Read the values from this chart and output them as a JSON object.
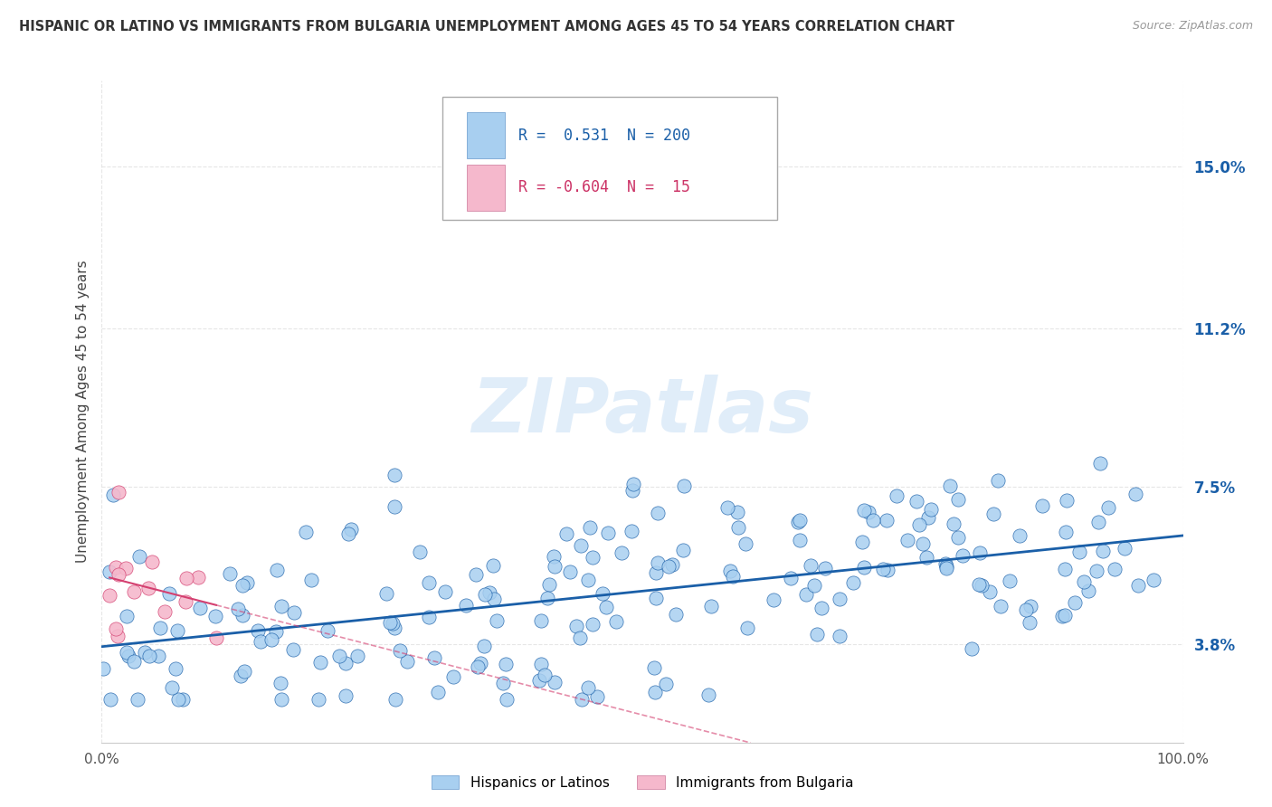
{
  "title": "HISPANIC OR LATINO VS IMMIGRANTS FROM BULGARIA UNEMPLOYMENT AMONG AGES 45 TO 54 YEARS CORRELATION CHART",
  "source": "Source: ZipAtlas.com",
  "ylabel": "Unemployment Among Ages 45 to 54 years",
  "xlim": [
    0,
    100
  ],
  "ylim": [
    1.5,
    17
  ],
  "yticks": [
    3.8,
    7.5,
    11.2,
    15.0
  ],
  "xticks": [
    0,
    100
  ],
  "xticklabels": [
    "0.0%",
    "100.0%"
  ],
  "r_hispanic": 0.531,
  "n_hispanic": 200,
  "r_bulgaria": -0.604,
  "n_bulgaria": 15,
  "color_hispanic": "#a8cff0",
  "color_bulgaria": "#f5b8cc",
  "color_trendline_hispanic": "#1a5fa8",
  "color_trendline_bulgaria": "#d44070",
  "watermark": "ZIPatlas",
  "legend_label_1": "Hispanics or Latinos",
  "legend_label_2": "Immigrants from Bulgaria",
  "background_color": "#ffffff",
  "grid_color": "#e0e0e0"
}
